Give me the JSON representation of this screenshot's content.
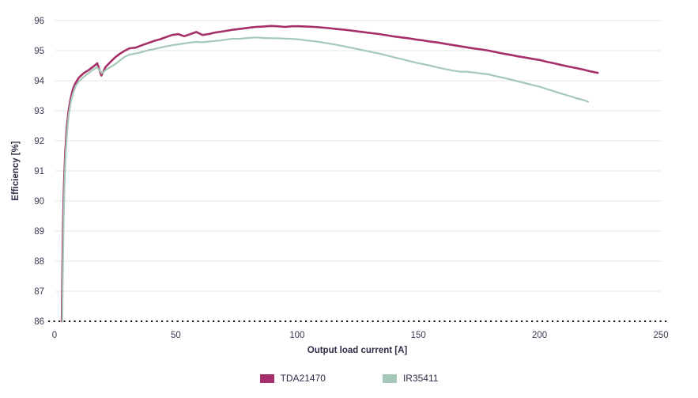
{
  "page": {
    "background": "#ffffff"
  },
  "chart_data": {
    "type": "line",
    "title": "",
    "xlabel": "Output load current [A]",
    "ylabel": "Efficiency [%]",
    "xlim": [
      0,
      250
    ],
    "ylim": [
      86,
      96
    ],
    "x_ticks": [
      0,
      50,
      100,
      150,
      200,
      250
    ],
    "y_ticks": [
      86,
      87,
      88,
      89,
      90,
      91,
      92,
      93,
      94,
      95,
      96
    ],
    "grid": "horizontal-only",
    "grid_color": "#e4e4e4",
    "baseline_value": 86,
    "baseline_style": "dotted",
    "axis_color": "#1a1a1a",
    "text_color": "#3a3a52",
    "legend_position": "bottom-center",
    "series": [
      {
        "name": "TDA21470",
        "color": "#a62e6a",
        "width": 2.6,
        "points": [
          [
            3,
            86
          ],
          [
            3.2,
            87.5
          ],
          [
            3.5,
            89.2
          ],
          [
            3.9,
            90.6
          ],
          [
            4.4,
            91.6
          ],
          [
            5,
            92.4
          ],
          [
            5.7,
            92.95
          ],
          [
            6.5,
            93.35
          ],
          [
            7.5,
            93.7
          ],
          [
            8.5,
            93.9
          ],
          [
            10,
            94.1
          ],
          [
            12,
            94.25
          ],
          [
            14,
            94.35
          ],
          [
            16,
            94.47
          ],
          [
            17.6,
            94.58
          ],
          [
            19.3,
            94.17
          ],
          [
            21,
            94.45
          ],
          [
            23,
            94.62
          ],
          [
            25,
            94.78
          ],
          [
            27,
            94.9
          ],
          [
            29,
            95.0
          ],
          [
            31,
            95.08
          ],
          [
            33.5,
            95.1
          ],
          [
            36,
            95.18
          ],
          [
            38.5,
            95.25
          ],
          [
            41,
            95.32
          ],
          [
            43.5,
            95.38
          ],
          [
            46,
            95.45
          ],
          [
            48.5,
            95.52
          ],
          [
            51,
            95.55
          ],
          [
            53.5,
            95.48
          ],
          [
            56,
            95.55
          ],
          [
            58.5,
            95.62
          ],
          [
            61,
            95.52
          ],
          [
            63.5,
            95.55
          ],
          [
            66,
            95.6
          ],
          [
            68.5,
            95.63
          ],
          [
            71,
            95.66
          ],
          [
            74,
            95.7
          ],
          [
            77,
            95.73
          ],
          [
            80,
            95.76
          ],
          [
            83,
            95.79
          ],
          [
            86,
            95.8
          ],
          [
            89,
            95.82
          ],
          [
            92,
            95.81
          ],
          [
            95,
            95.79
          ],
          [
            98,
            95.81
          ],
          [
            101,
            95.81
          ],
          [
            104,
            95.8
          ],
          [
            107,
            95.79
          ],
          [
            110,
            95.77
          ],
          [
            113,
            95.75
          ],
          [
            116,
            95.72
          ],
          [
            119,
            95.7
          ],
          [
            122,
            95.67
          ],
          [
            125,
            95.64
          ],
          [
            128,
            95.61
          ],
          [
            131,
            95.58
          ],
          [
            134,
            95.55
          ],
          [
            137,
            95.51
          ],
          [
            140,
            95.47
          ],
          [
            143,
            95.44
          ],
          [
            146,
            95.41
          ],
          [
            149,
            95.37
          ],
          [
            152,
            95.34
          ],
          [
            155,
            95.3
          ],
          [
            158,
            95.27
          ],
          [
            161,
            95.23
          ],
          [
            164,
            95.19
          ],
          [
            167,
            95.15
          ],
          [
            170,
            95.11
          ],
          [
            173,
            95.07
          ],
          [
            176,
            95.04
          ],
          [
            179,
            95.0
          ],
          [
            182,
            94.95
          ],
          [
            185,
            94.9
          ],
          [
            188,
            94.86
          ],
          [
            191,
            94.81
          ],
          [
            194,
            94.77
          ],
          [
            197,
            94.73
          ],
          [
            200,
            94.69
          ],
          [
            203,
            94.63
          ],
          [
            206,
            94.58
          ],
          [
            209,
            94.52
          ],
          [
            212,
            94.47
          ],
          [
            215,
            94.42
          ],
          [
            218,
            94.37
          ],
          [
            221,
            94.31
          ],
          [
            224,
            94.26
          ]
        ]
      },
      {
        "name": "IR35411",
        "color": "#a5c8b9",
        "width": 2.2,
        "points": [
          [
            3.2,
            86
          ],
          [
            3.4,
            87.5
          ],
          [
            3.7,
            89.2
          ],
          [
            4.1,
            90.6
          ],
          [
            4.6,
            91.6
          ],
          [
            5.2,
            92.35
          ],
          [
            5.9,
            92.9
          ],
          [
            6.7,
            93.3
          ],
          [
            7.7,
            93.6
          ],
          [
            8.7,
            93.82
          ],
          [
            10,
            93.98
          ],
          [
            12,
            94.12
          ],
          [
            14,
            94.25
          ],
          [
            16,
            94.37
          ],
          [
            17.5,
            94.45
          ],
          [
            19.5,
            94.25
          ],
          [
            21.5,
            94.38
          ],
          [
            23,
            94.45
          ],
          [
            25,
            94.55
          ],
          [
            27,
            94.68
          ],
          [
            29,
            94.8
          ],
          [
            31,
            94.87
          ],
          [
            33,
            94.9
          ],
          [
            35,
            94.93
          ],
          [
            37,
            94.98
          ],
          [
            39,
            95.02
          ],
          [
            41,
            95.05
          ],
          [
            43.5,
            95.1
          ],
          [
            46,
            95.14
          ],
          [
            48.5,
            95.18
          ],
          [
            51,
            95.21
          ],
          [
            53.5,
            95.24
          ],
          [
            56,
            95.27
          ],
          [
            58.5,
            95.29
          ],
          [
            61,
            95.28
          ],
          [
            63.5,
            95.3
          ],
          [
            66,
            95.32
          ],
          [
            68.5,
            95.34
          ],
          [
            71,
            95.37
          ],
          [
            73.5,
            95.4
          ],
          [
            76,
            95.39
          ],
          [
            78.5,
            95.41
          ],
          [
            81,
            95.43
          ],
          [
            83.5,
            95.44
          ],
          [
            86,
            95.42
          ],
          [
            89,
            95.41
          ],
          [
            92,
            95.41
          ],
          [
            95,
            95.4
          ],
          [
            98,
            95.39
          ],
          [
            101,
            95.37
          ],
          [
            104,
            95.34
          ],
          [
            107,
            95.31
          ],
          [
            110,
            95.28
          ],
          [
            113,
            95.24
          ],
          [
            116,
            95.2
          ],
          [
            119,
            95.15
          ],
          [
            122,
            95.1
          ],
          [
            125,
            95.05
          ],
          [
            128,
            95.0
          ],
          [
            131,
            94.95
          ],
          [
            134,
            94.9
          ],
          [
            137,
            94.84
          ],
          [
            140,
            94.78
          ],
          [
            143,
            94.72
          ],
          [
            146,
            94.66
          ],
          [
            149,
            94.6
          ],
          [
            152,
            94.55
          ],
          [
            155,
            94.5
          ],
          [
            158,
            94.44
          ],
          [
            161,
            94.39
          ],
          [
            164,
            94.34
          ],
          [
            167,
            94.3
          ],
          [
            170,
            94.3
          ],
          [
            173,
            94.27
          ],
          [
            176,
            94.24
          ],
          [
            179,
            94.21
          ],
          [
            182,
            94.15
          ],
          [
            185,
            94.1
          ],
          [
            188,
            94.04
          ],
          [
            191,
            93.98
          ],
          [
            194,
            93.92
          ],
          [
            197,
            93.86
          ],
          [
            200,
            93.8
          ],
          [
            203,
            93.72
          ],
          [
            206,
            93.65
          ],
          [
            209,
            93.57
          ],
          [
            212,
            93.5
          ],
          [
            215,
            93.42
          ],
          [
            218,
            93.36
          ],
          [
            220,
            93.3
          ]
        ]
      }
    ]
  }
}
